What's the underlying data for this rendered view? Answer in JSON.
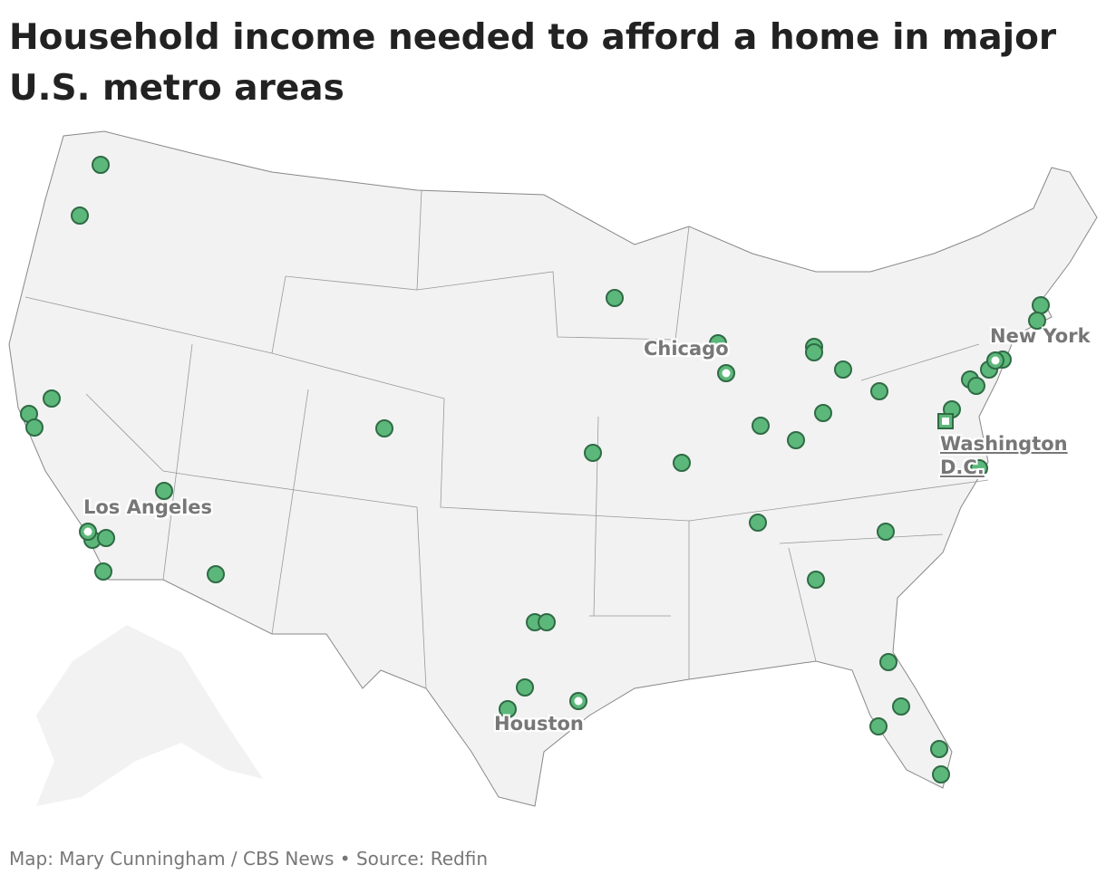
{
  "title": "Household income needed to afford a home in major U.S. metro areas",
  "city_labels": [
    "Chicago",
    "New York",
    "Washington D.C.",
    "Los Angeles",
    "Houston"
  ],
  "footer": "Map: Mary Cunningham / CBS News • Source: Redfin"
}
